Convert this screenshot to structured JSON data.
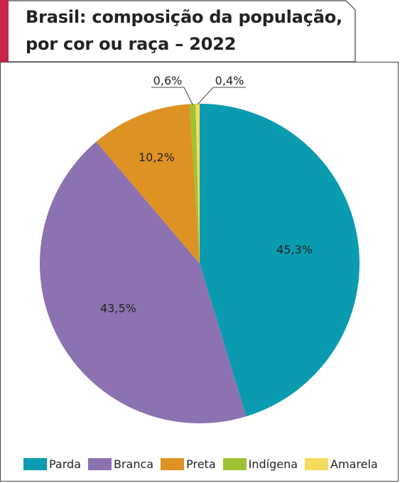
{
  "title": {
    "line1": "Brasil: composição da população,",
    "line2": "por cor ou raça – 2022"
  },
  "colors": {
    "accent": "#c8254a",
    "border": "#444444"
  },
  "chart_data": {
    "type": "pie",
    "title": "Brasil: composição da população, por cor ou raça – 2022",
    "categories": [
      "Parda",
      "Branca",
      "Preta",
      "Indígena",
      "Amarela"
    ],
    "values": [
      45.3,
      43.5,
      10.2,
      0.6,
      0.4
    ],
    "labels": [
      "45,3%",
      "43,5%",
      "10,2%",
      "0,6%",
      "0,4%"
    ],
    "colors": [
      "#0a9bb0",
      "#8c72b0",
      "#df9224",
      "#9ec234",
      "#f5dc5c"
    ],
    "legend_position": "bottom"
  }
}
